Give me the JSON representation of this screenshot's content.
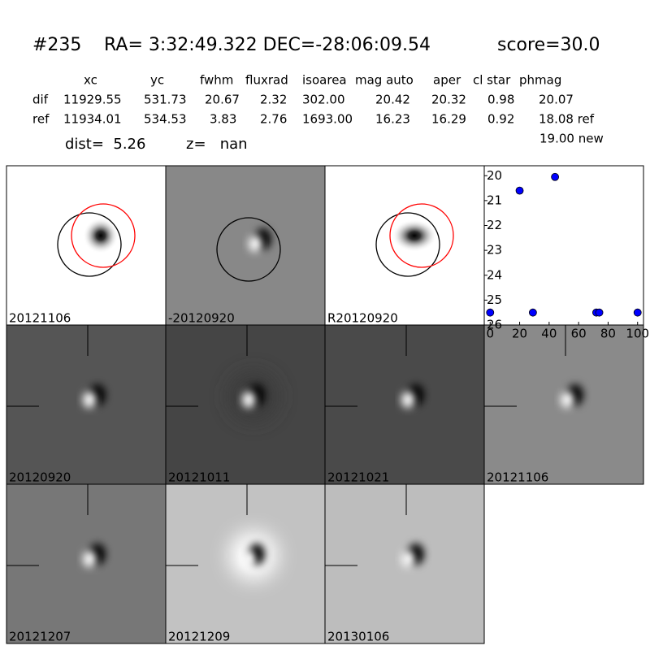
{
  "header": {
    "id": "#235",
    "coords": "RA= 3:32:49.322 DEC=-28:06:09.54",
    "score": "score=30.0"
  },
  "table": {
    "columns": [
      "xc",
      "yc",
      "fwhm",
      "fluxrad",
      "isoarea",
      "mag auto",
      "aper",
      "cl star",
      "phmag"
    ],
    "rows": [
      [
        "dif",
        "11929.55",
        "531.73",
        "20.67",
        "2.32",
        "302.00",
        "20.42",
        "20.32",
        "0.98",
        "20.07"
      ],
      [
        "ref",
        "11934.01",
        "534.53",
        "3.83",
        "2.76",
        "1693.00",
        "16.23",
        "16.29",
        "0.92",
        "18.08 ref"
      ]
    ],
    "note": "19.00 new"
  },
  "dist": "dist=  5.26",
  "z": "z=   nan",
  "panels": [
    {
      "label": "20121106",
      "color": "#000000"
    },
    {
      "label": "-20120920",
      "color": "#000000"
    },
    {
      "label": "R20120920",
      "color": "#000000"
    },
    {
      "label": "20120920",
      "color": "#000000"
    },
    {
      "label": "20121011",
      "color": "#000000"
    },
    {
      "label": "20121021",
      "color": "#000000"
    },
    {
      "label": "20121106",
      "color": "#ff0000"
    },
    {
      "label": "20121207",
      "color": "#000000"
    },
    {
      "label": "20121209",
      "color": "#000000"
    },
    {
      "label": "20130106",
      "color": "#000000"
    }
  ],
  "chart_data": {
    "type": "scatter",
    "x": [
      0,
      20,
      29,
      44,
      72,
      74,
      100
    ],
    "values": [
      25.5,
      20.6,
      25.5,
      20.05,
      25.5,
      25.5,
      25.5
    ],
    "color": "#0000ff",
    "xlim": [
      -4,
      104
    ],
    "ylim": [
      26,
      19.6
    ],
    "xticks": [
      0,
      20,
      40,
      60,
      80,
      100
    ],
    "yticks": [
      20,
      21,
      22,
      23,
      24,
      25,
      26
    ]
  }
}
